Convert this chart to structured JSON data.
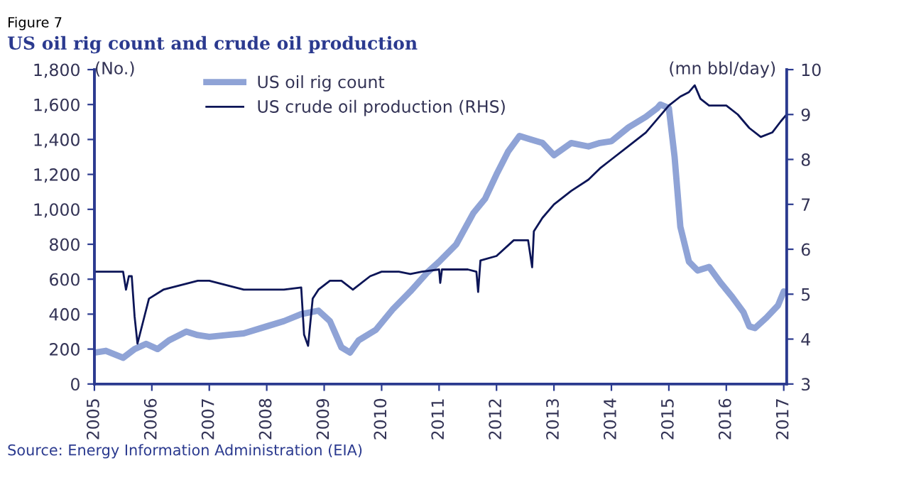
{
  "chart_data": {
    "type": "line",
    "subtitle": "Figure 7",
    "title": "US oil rig count and crude oil production",
    "ylabel": "(No.)",
    "y2label": "(mn bbl/day)",
    "xlim": [
      2005,
      2017.05
    ],
    "xticks": [
      2005,
      2006,
      2007,
      2008,
      2009,
      2010,
      2011,
      2012,
      2013,
      2014,
      2015,
      2016,
      2017
    ],
    "ylim": [
      0,
      1800
    ],
    "yticks": [
      {
        "value": 0,
        "label": "0"
      },
      {
        "value": 200,
        "label": "200"
      },
      {
        "value": 400,
        "label": "400"
      },
      {
        "value": 600,
        "label": "600"
      },
      {
        "value": 800,
        "label": "800"
      },
      {
        "value": 1000,
        "label": "1,000"
      },
      {
        "value": 1200,
        "label": "1,200"
      },
      {
        "value": 1400,
        "label": "1,400"
      },
      {
        "value": 1600,
        "label": "1,600"
      },
      {
        "value": 1800,
        "label": "1,800"
      }
    ],
    "y2lim": [
      3,
      10
    ],
    "y2ticks": [
      3,
      4,
      5,
      6,
      7,
      8,
      9,
      10
    ],
    "grid": false,
    "legend": "top left",
    "series": [
      {
        "name": "US oil rig count",
        "color": "#8fa3d6",
        "x": [
          2005.0,
          2005.2,
          2005.5,
          2005.7,
          2005.9,
          2006.1,
          2006.3,
          2006.6,
          2006.8,
          2007.0,
          2007.3,
          2007.6,
          2008.0,
          2008.3,
          2008.6,
          2008.9,
          2009.1,
          2009.3,
          2009.45,
          2009.6,
          2009.9,
          2010.2,
          2010.5,
          2010.8,
          2011.0,
          2011.3,
          2011.6,
          2011.8,
          2012.0,
          2012.2,
          2012.4,
          2012.6,
          2012.8,
          2013.0,
          2013.3,
          2013.6,
          2013.8,
          2014.0,
          2014.3,
          2014.6,
          2014.8,
          2014.85,
          2015.0,
          2015.1,
          2015.2,
          2015.35,
          2015.5,
          2015.7,
          2015.9,
          2016.1,
          2016.3,
          2016.4,
          2016.5,
          2016.7,
          2016.9,
          2017.0,
          2017.05
        ],
        "values": [
          180,
          190,
          150,
          200,
          230,
          200,
          250,
          300,
          280,
          270,
          280,
          290,
          330,
          360,
          400,
          420,
          360,
          210,
          180,
          250,
          310,
          430,
          530,
          640,
          700,
          800,
          980,
          1060,
          1200,
          1330,
          1420,
          1400,
          1380,
          1310,
          1380,
          1360,
          1380,
          1390,
          1470,
          1530,
          1580,
          1600,
          1580,
          1300,
          900,
          700,
          650,
          670,
          580,
          500,
          410,
          330,
          320,
          380,
          450,
          530,
          520
        ]
      },
      {
        "name": "US crude oil production (RHS)",
        "color": "#0c1557",
        "axis": "y2",
        "x": [
          2005.0,
          2005.3,
          2005.5,
          2005.55,
          2005.6,
          2005.65,
          2005.7,
          2005.75,
          2005.85,
          2005.95,
          2006.2,
          2006.5,
          2006.8,
          2007.0,
          2007.3,
          2007.6,
          2008.0,
          2008.3,
          2008.6,
          2008.65,
          2008.72,
          2008.8,
          2008.9,
          2009.1,
          2009.3,
          2009.5,
          2009.8,
          2010.0,
          2010.3,
          2010.5,
          2010.7,
          2011.0,
          2011.02,
          2011.05,
          2011.5,
          2011.65,
          2011.68,
          2011.72,
          2012.0,
          2012.3,
          2012.55,
          2012.62,
          2012.65,
          2012.8,
          2013.0,
          2013.3,
          2013.6,
          2013.8,
          2014.0,
          2014.3,
          2014.6,
          2014.8,
          2015.0,
          2015.2,
          2015.35,
          2015.45,
          2015.55,
          2015.7,
          2016.0,
          2016.2,
          2016.4,
          2016.6,
          2016.8,
          2016.95,
          2017.05
        ],
        "values": [
          5.5,
          5.5,
          5.5,
          5.1,
          5.4,
          5.4,
          4.5,
          3.9,
          4.4,
          4.9,
          5.1,
          5.2,
          5.3,
          5.3,
          5.2,
          5.1,
          5.1,
          5.1,
          5.15,
          4.1,
          3.85,
          4.9,
          5.1,
          5.3,
          5.3,
          5.1,
          5.4,
          5.5,
          5.5,
          5.45,
          5.5,
          5.55,
          5.25,
          5.55,
          5.55,
          5.5,
          5.05,
          5.75,
          5.85,
          6.2,
          6.2,
          5.6,
          6.4,
          6.7,
          7.0,
          7.3,
          7.55,
          7.8,
          8.0,
          8.3,
          8.6,
          8.9,
          9.2,
          9.4,
          9.5,
          9.65,
          9.35,
          9.2,
          9.2,
          9.0,
          8.7,
          8.5,
          8.6,
          8.85,
          9.0
        ]
      }
    ],
    "annotations": [
      "Source: Energy Information Administration (EIA)"
    ]
  }
}
